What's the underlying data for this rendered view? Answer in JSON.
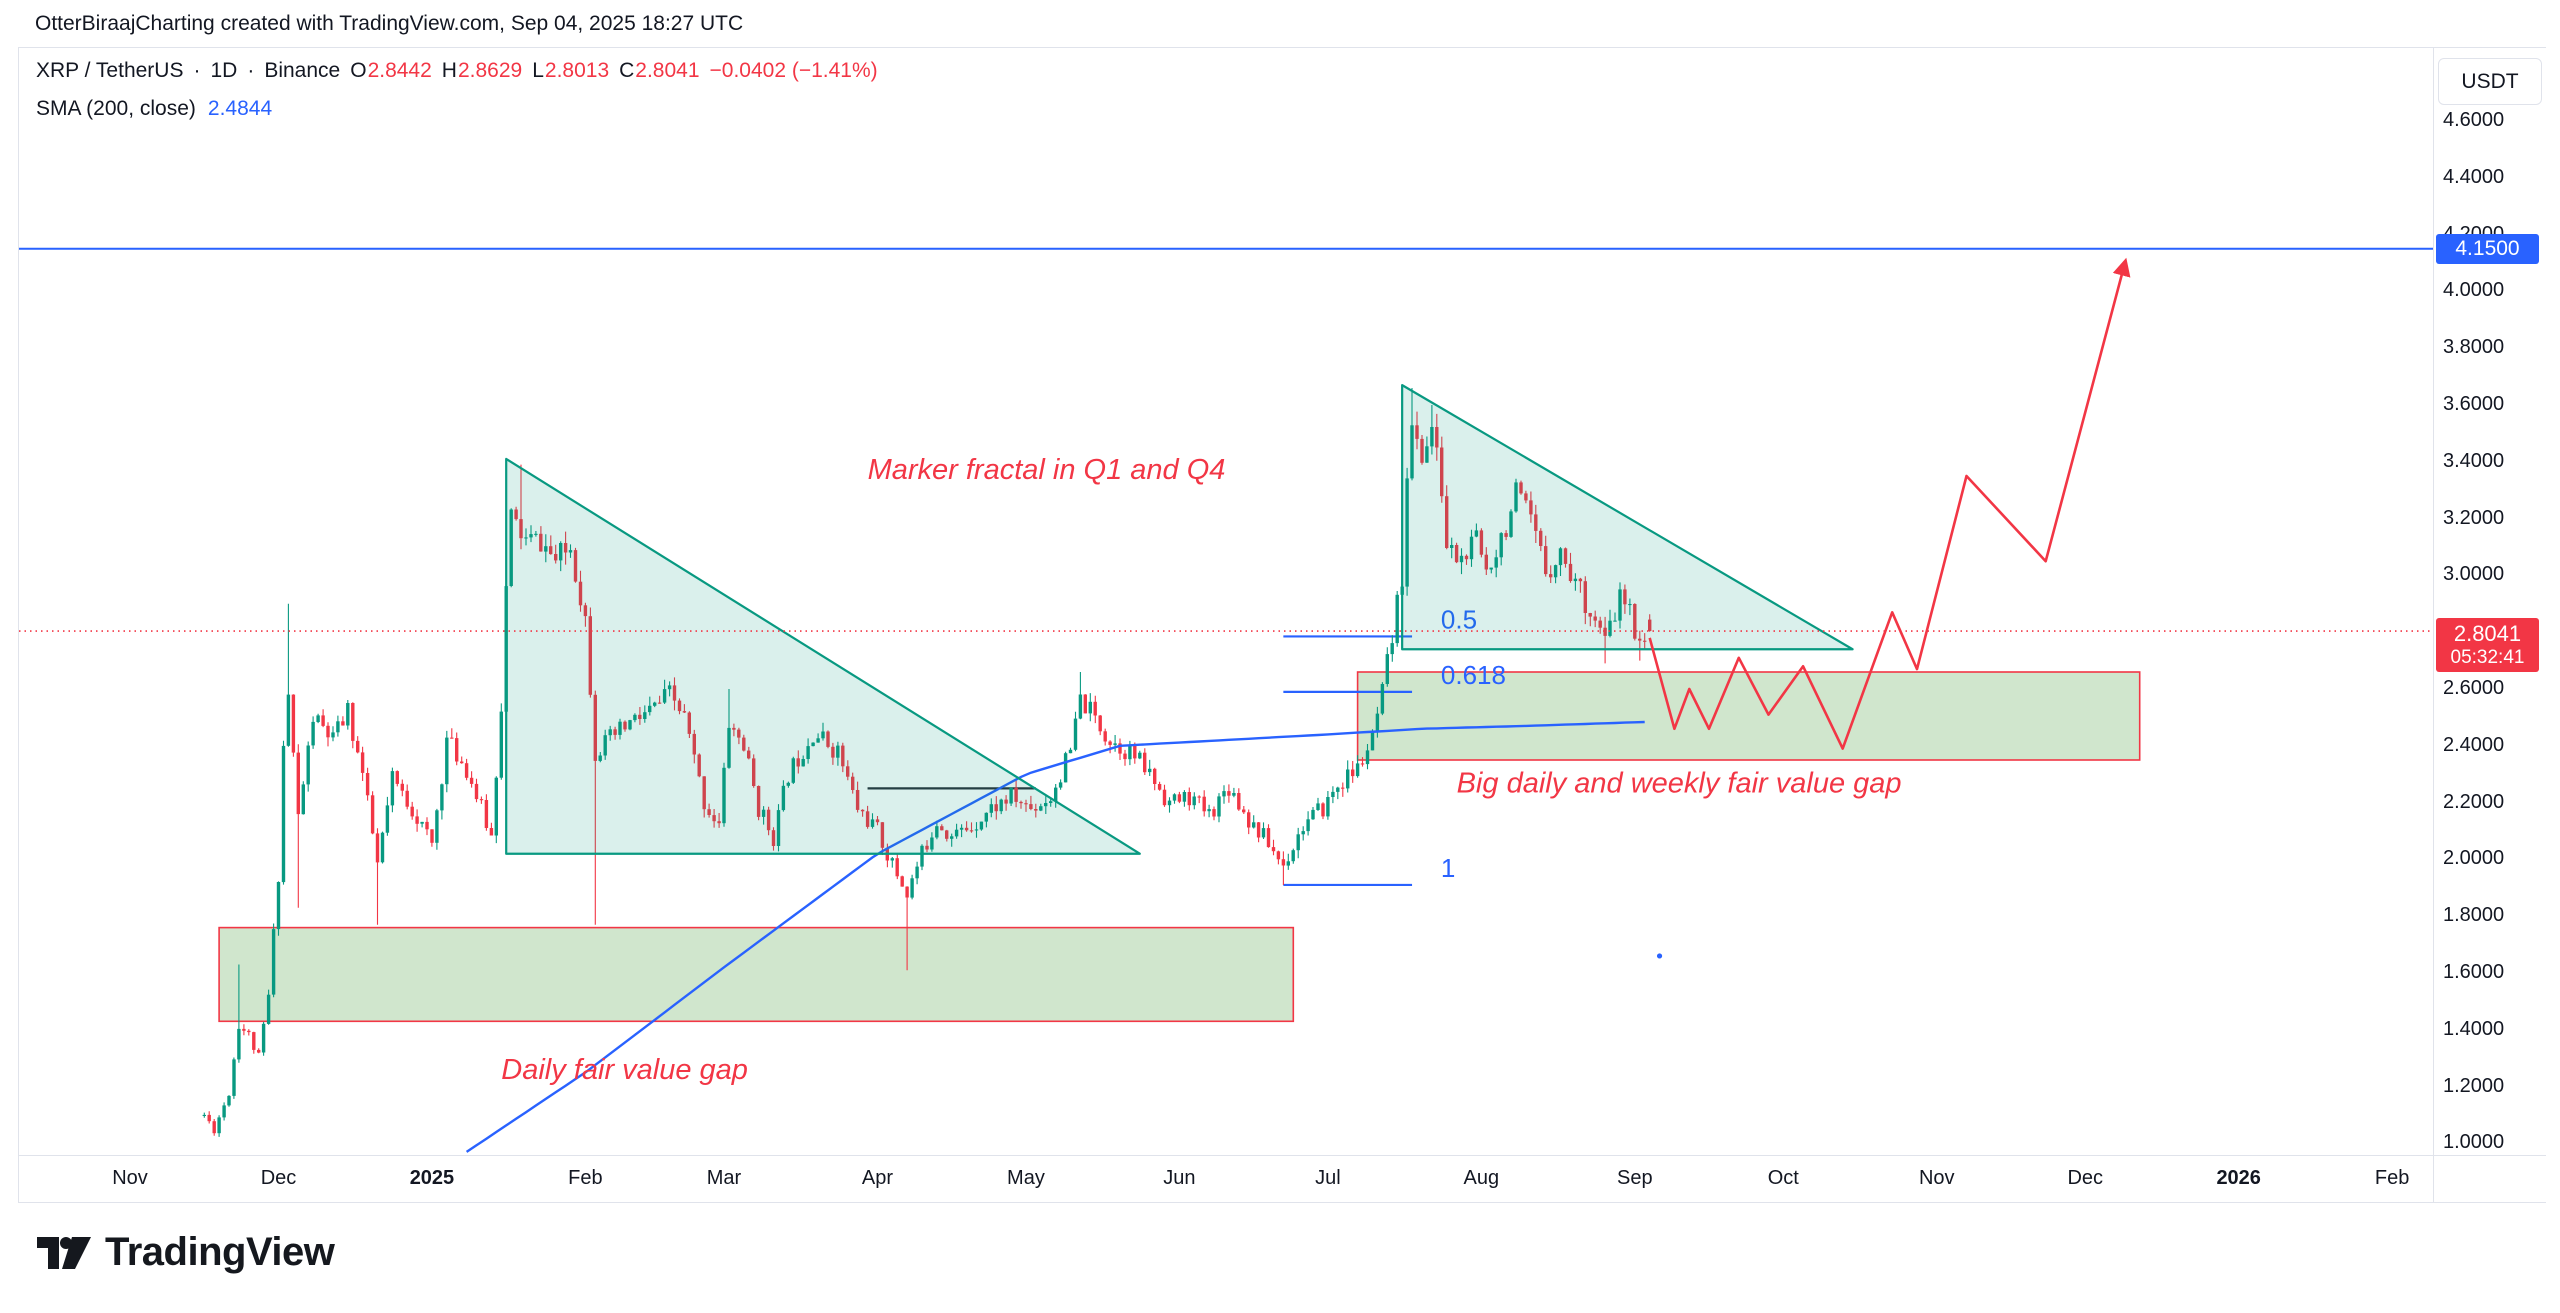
{
  "attribution": "OtterBiraajCharting created with TradingView.com, Sep 04, 2025 18:27 UTC",
  "legend": {
    "symbol": "XRP / TetherUS",
    "sep1": "·",
    "interval": "1D",
    "sep2": "·",
    "exchange": "Binance",
    "o_label": "O",
    "o": "2.8442",
    "h_label": "H",
    "h": "2.8629",
    "l_label": "L",
    "l": "2.8013",
    "c_label": "C",
    "c": "2.8041",
    "change": "−0.0402 (−1.41%)"
  },
  "indicator": {
    "name": "SMA (200, close)",
    "value": "2.4844"
  },
  "price_axis": {
    "currency_button": "USDT",
    "ticks": [
      "4.6000",
      "4.4000",
      "4.2000",
      "4.0000",
      "3.8000",
      "3.6000",
      "3.4000",
      "3.2000",
      "3.0000",
      "2.8000",
      "2.6000",
      "2.4000",
      "2.2000",
      "2.0000",
      "1.8000",
      "1.6000",
      "1.4000",
      "1.2000",
      "1.0000"
    ],
    "line_price_label": "4.1500",
    "last_price_label": "2.8041",
    "countdown": "05:32:41"
  },
  "time_axis": {
    "labels": [
      {
        "text": "Nov",
        "date": "2024-11-01",
        "bold": false
      },
      {
        "text": "Dec",
        "date": "2024-12-01",
        "bold": false
      },
      {
        "text": "2025",
        "date": "2025-01-01",
        "bold": true
      },
      {
        "text": "Feb",
        "date": "2025-02-01",
        "bold": false
      },
      {
        "text": "Mar",
        "date": "2025-03-01",
        "bold": false
      },
      {
        "text": "Apr",
        "date": "2025-04-01",
        "bold": false
      },
      {
        "text": "May",
        "date": "2025-05-01",
        "bold": false
      },
      {
        "text": "Jun",
        "date": "2025-06-01",
        "bold": false
      },
      {
        "text": "Jul",
        "date": "2025-07-01",
        "bold": false
      },
      {
        "text": "Aug",
        "date": "2025-08-01",
        "bold": false
      },
      {
        "text": "Sep",
        "date": "2025-09-01",
        "bold": false
      },
      {
        "text": "Oct",
        "date": "2025-10-01",
        "bold": false
      },
      {
        "text": "Nov",
        "date": "2025-11-01",
        "bold": false
      },
      {
        "text": "Dec",
        "date": "2025-12-01",
        "bold": false
      },
      {
        "text": "2026",
        "date": "2026-01-01",
        "bold": true
      },
      {
        "text": "Feb",
        "date": "2026-02-01",
        "bold": false
      }
    ]
  },
  "footer": {
    "brand": "TradingView"
  },
  "colors": {
    "up": "#089981",
    "down": "#f23645",
    "sma": "#2962ff",
    "fib": "#2962ff",
    "annotation": "#f23645",
    "triangle_fill": "rgba(8,153,129,0.15)",
    "triangle_stroke": "#089981",
    "box_fill": "rgba(150,200,145,0.45)",
    "box_stroke": "#f23645",
    "level_line": "#2962ff",
    "border": "#e0e3eb",
    "text": "#131722"
  },
  "chart_data": {
    "type": "candlestick",
    "symbol": "XRP/USDT",
    "interval": "1D",
    "title": "XRP / TetherUS 1D Binance with SMA(200) and fractal projection",
    "y_axis_range": [
      0.955,
      4.86
    ],
    "x_axis_range": [
      "2024-11-01",
      "2026-02-28"
    ],
    "grid": false,
    "last_candle": {
      "date": "2025-09-04",
      "o": 2.8442,
      "h": 2.8629,
      "l": 2.8013,
      "c": 2.8041
    },
    "close_path": [
      [
        "2024-11-16",
        1.1
      ],
      [
        "2024-11-18",
        1.05
      ],
      [
        "2024-11-21",
        1.18
      ],
      [
        "2024-11-23",
        1.42
      ],
      [
        "2024-11-25",
        1.38
      ],
      [
        "2024-11-27",
        1.3
      ],
      [
        "2024-11-29",
        1.52
      ],
      [
        "2024-12-01",
        1.95
      ],
      [
        "2024-12-02",
        2.4
      ],
      [
        "2024-12-03",
        2.58
      ],
      [
        "2024-12-05",
        2.15
      ],
      [
        "2024-12-08",
        2.5
      ],
      [
        "2024-12-12",
        2.42
      ],
      [
        "2024-12-15",
        2.52
      ],
      [
        "2024-12-18",
        2.3
      ],
      [
        "2024-12-21",
        1.98
      ],
      [
        "2024-12-24",
        2.28
      ],
      [
        "2024-12-28",
        2.18
      ],
      [
        "2025-01-01",
        2.05
      ],
      [
        "2025-01-04",
        2.42
      ],
      [
        "2025-01-08",
        2.32
      ],
      [
        "2025-01-13",
        2.08
      ],
      [
        "2025-01-15",
        2.55
      ],
      [
        "2025-01-16",
        2.95
      ],
      [
        "2025-01-17",
        3.2
      ],
      [
        "2025-01-20",
        3.12
      ],
      [
        "2025-01-23",
        3.12
      ],
      [
        "2025-01-26",
        3.05
      ],
      [
        "2025-01-29",
        3.1
      ],
      [
        "2025-02-01",
        2.85
      ],
      [
        "2025-02-03",
        2.38
      ],
      [
        "2025-02-06",
        2.42
      ],
      [
        "2025-02-10",
        2.48
      ],
      [
        "2025-02-14",
        2.52
      ],
      [
        "2025-02-18",
        2.58
      ],
      [
        "2025-02-21",
        2.5
      ],
      [
        "2025-02-25",
        2.2
      ],
      [
        "2025-02-28",
        2.12
      ],
      [
        "2025-03-02",
        2.48
      ],
      [
        "2025-03-05",
        2.4
      ],
      [
        "2025-03-08",
        2.18
      ],
      [
        "2025-03-11",
        2.08
      ],
      [
        "2025-03-14",
        2.3
      ],
      [
        "2025-03-19",
        2.45
      ],
      [
        "2025-03-24",
        2.38
      ],
      [
        "2025-03-28",
        2.18
      ],
      [
        "2025-04-01",
        2.1
      ],
      [
        "2025-04-04",
        1.98
      ],
      [
        "2025-04-07",
        1.88
      ],
      [
        "2025-04-10",
        2.02
      ],
      [
        "2025-04-13",
        2.14
      ],
      [
        "2025-04-16",
        2.08
      ],
      [
        "2025-04-20",
        2.12
      ],
      [
        "2025-04-24",
        2.18
      ],
      [
        "2025-04-28",
        2.22
      ],
      [
        "2025-05-02",
        2.18
      ],
      [
        "2025-05-06",
        2.22
      ],
      [
        "2025-05-10",
        2.38
      ],
      [
        "2025-05-12",
        2.56
      ],
      [
        "2025-05-14",
        2.52
      ],
      [
        "2025-05-18",
        2.42
      ],
      [
        "2025-05-22",
        2.38
      ],
      [
        "2025-05-26",
        2.3
      ],
      [
        "2025-05-30",
        2.2
      ],
      [
        "2025-06-03",
        2.22
      ],
      [
        "2025-06-07",
        2.16
      ],
      [
        "2025-06-11",
        2.26
      ],
      [
        "2025-06-15",
        2.14
      ],
      [
        "2025-06-18",
        2.08
      ],
      [
        "2025-06-22",
        1.98
      ],
      [
        "2025-06-26",
        2.12
      ],
      [
        "2025-06-30",
        2.18
      ],
      [
        "2025-07-03",
        2.26
      ],
      [
        "2025-07-07",
        2.32
      ],
      [
        "2025-07-10",
        2.42
      ],
      [
        "2025-07-12",
        2.58
      ],
      [
        "2025-07-14",
        2.78
      ],
      [
        "2025-07-16",
        3.0
      ],
      [
        "2025-07-17",
        3.38
      ],
      [
        "2025-07-18",
        3.5
      ],
      [
        "2025-07-20",
        3.42
      ],
      [
        "2025-07-22",
        3.52
      ],
      [
        "2025-07-24",
        3.3
      ],
      [
        "2025-07-25",
        3.1
      ],
      [
        "2025-07-28",
        3.05
      ],
      [
        "2025-07-31",
        3.12
      ],
      [
        "2025-08-02",
        3.02
      ],
      [
        "2025-08-06",
        3.18
      ],
      [
        "2025-08-08",
        3.28
      ],
      [
        "2025-08-11",
        3.18
      ],
      [
        "2025-08-14",
        3.02
      ],
      [
        "2025-08-17",
        3.08
      ],
      [
        "2025-08-20",
        2.98
      ],
      [
        "2025-08-23",
        2.88
      ],
      [
        "2025-08-26",
        2.76
      ],
      [
        "2025-08-29",
        2.92
      ],
      [
        "2025-08-31",
        2.86
      ],
      [
        "2025-09-02",
        2.78
      ],
      [
        "2025-09-04",
        2.8041
      ]
    ],
    "wick_highs": [
      [
        "2024-11-23",
        1.63
      ],
      [
        "2024-12-03",
        2.9
      ],
      [
        "2025-01-19",
        3.39
      ],
      [
        "2025-03-02",
        2.6
      ],
      [
        "2025-05-12",
        2.66
      ],
      [
        "2025-07-18",
        3.66
      ],
      [
        "2025-07-22",
        3.6
      ],
      [
        "2025-08-08",
        3.34
      ]
    ],
    "wick_lows": [
      [
        "2024-12-05",
        1.83
      ],
      [
        "2024-12-21",
        1.77
      ],
      [
        "2025-02-03",
        1.77
      ],
      [
        "2025-04-07",
        1.61
      ],
      [
        "2025-06-22",
        1.91
      ],
      [
        "2025-08-26",
        2.69
      ],
      [
        "2025-09-02",
        2.7
      ]
    ],
    "sma200": [
      [
        "2025-01-08",
        0.97
      ],
      [
        "2025-02-01",
        1.25
      ],
      [
        "2025-03-01",
        1.62
      ],
      [
        "2025-04-01",
        2.02
      ],
      [
        "2025-05-01",
        2.3
      ],
      [
        "2025-05-20",
        2.4
      ],
      [
        "2025-06-10",
        2.42
      ],
      [
        "2025-07-01",
        2.44
      ],
      [
        "2025-07-20",
        2.46
      ],
      [
        "2025-08-10",
        2.47
      ],
      [
        "2025-09-04",
        2.4844
      ]
    ],
    "horizontal_line": {
      "price": 4.15
    },
    "current_price_line": {
      "price": 2.8041,
      "style": "dotted"
    },
    "triangles": [
      {
        "apex_date": "2025-01-16",
        "apex_price": 3.41,
        "base_price": 2.02,
        "end_date": "2025-05-24"
      },
      {
        "apex_date": "2025-07-16",
        "apex_price": 3.67,
        "base_price": 2.74,
        "end_date": "2025-10-15"
      }
    ],
    "fvg_boxes": [
      {
        "from": "2024-11-19",
        "to": "2025-06-24",
        "top": 1.76,
        "bottom": 1.43
      },
      {
        "from": "2025-07-07",
        "to": "2025-12-12",
        "top": 2.66,
        "bottom": 2.35
      }
    ],
    "fib_levels": {
      "from": "2025-06-22",
      "to": "2025-07-18",
      "label_date": "2025-07-21",
      "levels": [
        {
          "label": "0.5",
          "price": 2.785
        },
        {
          "label": "0.618",
          "price": 2.59
        },
        {
          "label": "1",
          "price": 1.91
        }
      ]
    },
    "equal_highs_line": {
      "from": "2025-03-30",
      "to": "2025-05-03",
      "price": 2.25
    },
    "projection": [
      [
        "2025-09-04",
        2.78
      ],
      [
        "2025-09-09",
        2.46
      ],
      [
        "2025-09-12",
        2.6
      ],
      [
        "2025-09-16",
        2.46
      ],
      [
        "2025-09-22",
        2.71
      ],
      [
        "2025-09-28",
        2.51
      ],
      [
        "2025-10-05",
        2.68
      ],
      [
        "2025-10-13",
        2.39
      ],
      [
        "2025-10-23",
        2.87
      ],
      [
        "2025-10-28",
        2.67
      ],
      [
        "2025-11-07",
        3.35
      ],
      [
        "2025-11-23",
        3.05
      ],
      [
        "2025-12-09",
        4.1
      ]
    ],
    "annotations": [
      {
        "text": "Marker fractal in Q1 and Q4",
        "date": "2025-03-30",
        "price": 3.34
      },
      {
        "text": "Big daily and weekly fair value gap",
        "date": "2025-07-27",
        "price": 2.235
      },
      {
        "text": "Daily fair value gap",
        "date": "2025-01-15",
        "price": 1.227
      }
    ],
    "stray_dot": {
      "date": "2025-09-06",
      "price": 1.66
    }
  }
}
